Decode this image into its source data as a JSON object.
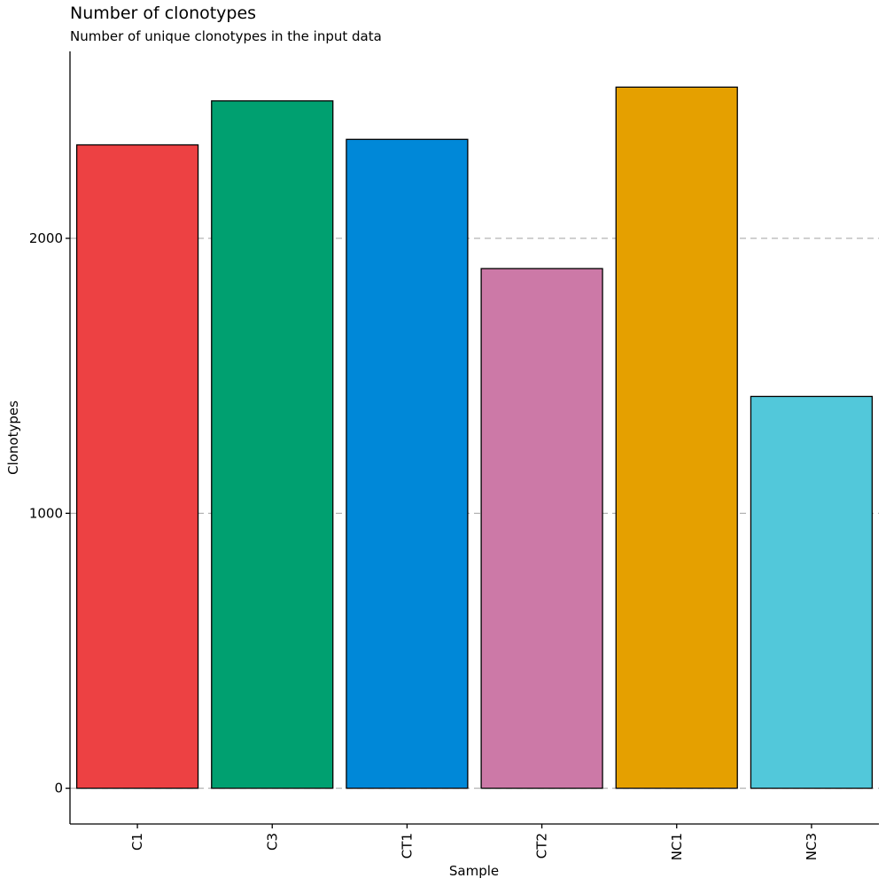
{
  "chart_data": {
    "type": "bar",
    "title": "Number of clonotypes",
    "subtitle": "Number of unique clonotypes in the input data",
    "xlabel": "Sample",
    "ylabel": "Clonotypes",
    "categories": [
      "C1",
      "C3",
      "CT1",
      "CT2",
      "NC1",
      "NC3"
    ],
    "values": [
      2340,
      2500,
      2360,
      1890,
      2550,
      1425
    ],
    "colors": [
      "#ED4143",
      "#00A070",
      "#0088D8",
      "#CC79A7",
      "#E5A000",
      "#52C8DA"
    ],
    "bar_outline_color": "#000000",
    "grid_color": "#B3B3B3",
    "yticks": [
      0,
      1000,
      2000
    ],
    "ylim": [
      -130,
      2680
    ],
    "grid": "horizontal dashed",
    "legend": "none"
  }
}
